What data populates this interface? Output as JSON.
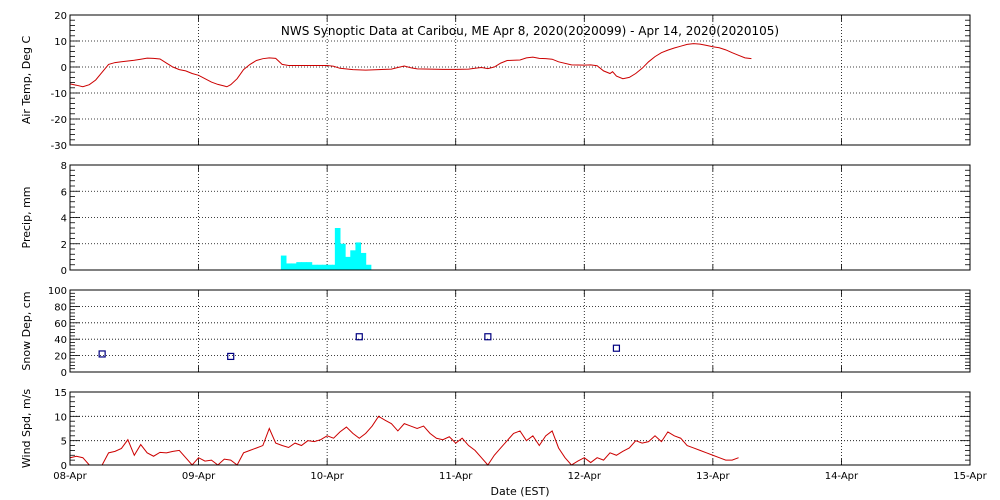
{
  "chart_data": {
    "type": "multi-panel",
    "title": "NWS Synoptic Data at Caribou, ME   Apr  8, 2020(2020099) - Apr 14, 2020(2020105)",
    "xlabel": "Date (EST)",
    "x_ticks": [
      "08-Apr",
      "09-Apr",
      "10-Apr",
      "11-Apr",
      "12-Apr",
      "13-Apr",
      "14-Apr",
      "15-Apr"
    ],
    "xlim_days": [
      0,
      7
    ],
    "grid": true,
    "panels": [
      {
        "type": "line",
        "ylabel": "Air Temp, Deg C",
        "ylim": [
          -30,
          20
        ],
        "yticks": [
          20,
          10,
          0,
          -10,
          -20,
          -30
        ],
        "color": "#cc0000",
        "points": [
          [
            0.0,
            -6.5
          ],
          [
            0.05,
            -7
          ],
          [
            0.1,
            -7.6
          ],
          [
            0.15,
            -6.8
          ],
          [
            0.2,
            -5
          ],
          [
            0.25,
            -2
          ],
          [
            0.3,
            1
          ],
          [
            0.35,
            1.7
          ],
          [
            0.4,
            2
          ],
          [
            0.45,
            2.3
          ],
          [
            0.5,
            2.6
          ],
          [
            0.55,
            3
          ],
          [
            0.6,
            3.4
          ],
          [
            0.65,
            3.3
          ],
          [
            0.7,
            3.1
          ],
          [
            0.75,
            1.5
          ],
          [
            0.8,
            0
          ],
          [
            0.85,
            -1
          ],
          [
            0.9,
            -1.5
          ],
          [
            0.95,
            -2.5
          ],
          [
            1.0,
            -3.2
          ],
          [
            1.05,
            -4.5
          ],
          [
            1.1,
            -5.8
          ],
          [
            1.15,
            -6.7
          ],
          [
            1.2,
            -7.3
          ],
          [
            1.22,
            -7.6
          ],
          [
            1.25,
            -6.8
          ],
          [
            1.3,
            -4.5
          ],
          [
            1.35,
            -1
          ],
          [
            1.4,
            1
          ],
          [
            1.45,
            2.5
          ],
          [
            1.5,
            3.2
          ],
          [
            1.55,
            3.5
          ],
          [
            1.6,
            3.3
          ],
          [
            1.65,
            1
          ],
          [
            1.7,
            0.6
          ],
          [
            1.8,
            0.6
          ],
          [
            1.9,
            0.6
          ],
          [
            2.0,
            0.6
          ],
          [
            2.05,
            0.3
          ],
          [
            2.1,
            -0.5
          ],
          [
            2.2,
            -1
          ],
          [
            2.3,
            -1.2
          ],
          [
            2.4,
            -1
          ],
          [
            2.5,
            -0.8
          ],
          [
            2.55,
            -0.2
          ],
          [
            2.6,
            0.4
          ],
          [
            2.65,
            -0.3
          ],
          [
            2.7,
            -0.7
          ],
          [
            2.8,
            -0.8
          ],
          [
            2.9,
            -0.9
          ],
          [
            3.0,
            -0.9
          ],
          [
            3.1,
            -0.8
          ],
          [
            3.15,
            -0.5
          ],
          [
            3.2,
            -0.2
          ],
          [
            3.25,
            -0.6
          ],
          [
            3.3,
            0
          ],
          [
            3.35,
            1.5
          ],
          [
            3.4,
            2.5
          ],
          [
            3.45,
            2.6
          ],
          [
            3.5,
            2.7
          ],
          [
            3.55,
            3.5
          ],
          [
            3.6,
            3.8
          ],
          [
            3.65,
            3.3
          ],
          [
            3.7,
            3.2
          ],
          [
            3.75,
            3
          ],
          [
            3.8,
            2
          ],
          [
            3.9,
            0.8
          ],
          [
            4.0,
            0.7
          ],
          [
            4.05,
            0.8
          ],
          [
            4.1,
            0.5
          ],
          [
            4.15,
            -1.5
          ],
          [
            4.2,
            -2.5
          ],
          [
            4.22,
            -1.8
          ],
          [
            4.25,
            -3.5
          ],
          [
            4.3,
            -4.5
          ],
          [
            4.35,
            -4
          ],
          [
            4.4,
            -2.5
          ],
          [
            4.45,
            -0.5
          ],
          [
            4.5,
            2
          ],
          [
            4.55,
            4
          ],
          [
            4.6,
            5.5
          ],
          [
            4.65,
            6.5
          ],
          [
            4.7,
            7.3
          ],
          [
            4.75,
            8
          ],
          [
            4.8,
            8.7
          ],
          [
            4.85,
            9
          ],
          [
            4.9,
            8.8
          ],
          [
            4.95,
            8.3
          ],
          [
            5.0,
            7.8
          ],
          [
            5.05,
            7.4
          ],
          [
            5.1,
            6.6
          ],
          [
            5.15,
            5.5
          ],
          [
            5.2,
            4.5
          ],
          [
            5.25,
            3.5
          ],
          [
            5.3,
            3.2
          ]
        ]
      },
      {
        "type": "bar",
        "ylabel": "Precip, mm",
        "ylim": [
          0,
          8
        ],
        "yticks": [
          8,
          6,
          4,
          2,
          0
        ],
        "color": "#00ffff",
        "bars": [
          [
            1.64,
            1.1
          ],
          [
            1.68,
            0.5
          ],
          [
            1.72,
            0.5
          ],
          [
            1.76,
            0.6
          ],
          [
            1.8,
            0.6
          ],
          [
            1.84,
            0.6
          ],
          [
            1.88,
            0.4
          ],
          [
            1.92,
            0.4
          ],
          [
            1.96,
            0.4
          ],
          [
            2.0,
            0.4
          ],
          [
            2.04,
            0.4
          ],
          [
            2.06,
            3.2
          ],
          [
            2.1,
            2.0
          ],
          [
            2.14,
            1.0
          ],
          [
            2.18,
            1.5
          ],
          [
            2.22,
            2.1
          ],
          [
            2.26,
            1.3
          ],
          [
            2.3,
            0.4
          ]
        ]
      },
      {
        "type": "scatter",
        "ylabel": "Snow Dep, cm",
        "ylim": [
          0,
          100
        ],
        "yticks": [
          100,
          80,
          60,
          40,
          20,
          0
        ],
        "color": "#000080",
        "points": [
          [
            0.25,
            22
          ],
          [
            1.25,
            19
          ],
          [
            2.25,
            43
          ],
          [
            3.25,
            43
          ],
          [
            4.25,
            29
          ]
        ]
      },
      {
        "type": "line",
        "ylabel": "Wind Spd, m/s",
        "ylim": [
          0,
          15
        ],
        "yticks": [
          15,
          10,
          5,
          0
        ],
        "color": "#cc0000",
        "points": [
          [
            0.0,
            1.5
          ],
          [
            0.05,
            1.8
          ],
          [
            0.1,
            1.5
          ],
          [
            0.15,
            0
          ],
          [
            0.2,
            0
          ],
          [
            0.25,
            0
          ],
          [
            0.3,
            2.5
          ],
          [
            0.35,
            2.8
          ],
          [
            0.4,
            3.4
          ],
          [
            0.45,
            5.2
          ],
          [
            0.5,
            2.0
          ],
          [
            0.55,
            4.2
          ],
          [
            0.6,
            2.5
          ],
          [
            0.65,
            1.8
          ],
          [
            0.7,
            2.6
          ],
          [
            0.75,
            2.5
          ],
          [
            0.8,
            2.8
          ],
          [
            0.85,
            3.0
          ],
          [
            0.9,
            1.5
          ],
          [
            0.95,
            0
          ],
          [
            1.0,
            1.5
          ],
          [
            1.05,
            0.8
          ],
          [
            1.1,
            1.0
          ],
          [
            1.15,
            0
          ],
          [
            1.2,
            1.2
          ],
          [
            1.25,
            1.0
          ],
          [
            1.3,
            0
          ],
          [
            1.35,
            2.5
          ],
          [
            1.4,
            3.0
          ],
          [
            1.45,
            3.5
          ],
          [
            1.5,
            4.0
          ],
          [
            1.55,
            7.5
          ],
          [
            1.6,
            4.5
          ],
          [
            1.65,
            4.0
          ],
          [
            1.7,
            3.6
          ],
          [
            1.75,
            4.5
          ],
          [
            1.8,
            4.0
          ],
          [
            1.85,
            5.0
          ],
          [
            1.9,
            4.8
          ],
          [
            1.95,
            5.2
          ],
          [
            2.0,
            6.0
          ],
          [
            2.05,
            5.5
          ],
          [
            2.1,
            6.8
          ],
          [
            2.15,
            7.8
          ],
          [
            2.2,
            6.5
          ],
          [
            2.25,
            5.5
          ],
          [
            2.3,
            6.5
          ],
          [
            2.35,
            8.0
          ],
          [
            2.4,
            10.0
          ],
          [
            2.45,
            9.2
          ],
          [
            2.5,
            8.5
          ],
          [
            2.55,
            7.0
          ],
          [
            2.6,
            8.5
          ],
          [
            2.65,
            8.0
          ],
          [
            2.7,
            7.5
          ],
          [
            2.75,
            8.0
          ],
          [
            2.8,
            6.5
          ],
          [
            2.85,
            5.5
          ],
          [
            2.9,
            5.2
          ],
          [
            2.95,
            5.8
          ],
          [
            3.0,
            4.5
          ],
          [
            3.05,
            5.5
          ],
          [
            3.1,
            4.0
          ],
          [
            3.15,
            3.0
          ],
          [
            3.2,
            1.5
          ],
          [
            3.25,
            0
          ],
          [
            3.3,
            2.0
          ],
          [
            3.35,
            3.5
          ],
          [
            3.4,
            5.0
          ],
          [
            3.45,
            6.5
          ],
          [
            3.5,
            7.0
          ],
          [
            3.55,
            5.0
          ],
          [
            3.6,
            6.0
          ],
          [
            3.65,
            4.0
          ],
          [
            3.7,
            6.0
          ],
          [
            3.75,
            7.0
          ],
          [
            3.8,
            3.5
          ],
          [
            3.85,
            1.5
          ],
          [
            3.9,
            0
          ],
          [
            3.95,
            0.8
          ],
          [
            4.0,
            1.5
          ],
          [
            4.05,
            0.5
          ],
          [
            4.1,
            1.5
          ],
          [
            4.15,
            1.0
          ],
          [
            4.2,
            2.5
          ],
          [
            4.25,
            2.0
          ],
          [
            4.3,
            2.8
          ],
          [
            4.35,
            3.5
          ],
          [
            4.4,
            5.0
          ],
          [
            4.45,
            4.5
          ],
          [
            4.5,
            4.8
          ],
          [
            4.55,
            6.0
          ],
          [
            4.6,
            4.8
          ],
          [
            4.65,
            6.8
          ],
          [
            4.7,
            6.0
          ],
          [
            4.75,
            5.5
          ],
          [
            4.8,
            4.0
          ],
          [
            4.85,
            3.5
          ],
          [
            4.9,
            3.0
          ],
          [
            4.95,
            2.5
          ],
          [
            5.0,
            2.0
          ],
          [
            5.05,
            1.5
          ],
          [
            5.1,
            1.0
          ],
          [
            5.15,
            1.0
          ],
          [
            5.2,
            1.5
          ]
        ]
      }
    ]
  }
}
